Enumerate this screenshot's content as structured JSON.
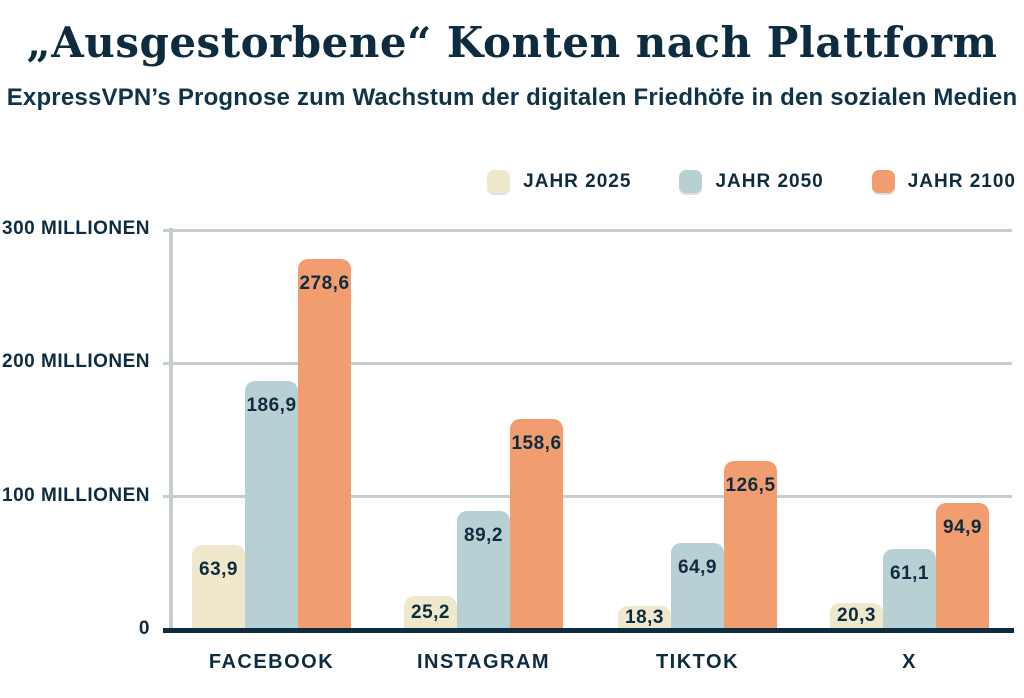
{
  "header": {
    "title": "„Ausgestorbene“ Konten nach Plattform",
    "subtitle": "ExpressVPN’s Prognose zum Wachstum der digitalen Friedhöfe in den sozialen Medien"
  },
  "colors": {
    "text_navy": "#0e2c3f",
    "grid_gray": "#c6cdd1",
    "axis_navy": "#0e2c3f",
    "series_2025": "#efe8cc",
    "series_2050": "#b7d0d3",
    "series_2100": "#f19d70",
    "background": "#ffffff"
  },
  "legend": {
    "items": [
      {
        "label": "JAHR 2025",
        "color": "#efe8cc"
      },
      {
        "label": "JAHR 2050",
        "color": "#b7d0d3"
      },
      {
        "label": "JAHR 2100",
        "color": "#f19d70"
      }
    ]
  },
  "chart_data": {
    "type": "bar",
    "title": "„Ausgestorbene“ Konten nach Plattform",
    "subtitle": "ExpressVPN’s Prognose zum Wachstum der digitalen Friedhöfe in den sozialen Medien",
    "categories": [
      "FACEBOOK",
      "INSTAGRAM",
      "TIKTOK",
      "X"
    ],
    "series": [
      {
        "name": "JAHR 2025",
        "color": "#efe8cc",
        "values": [
          63.9,
          25.2,
          18.3,
          20.3
        ],
        "labels": [
          "63,9",
          "25,2",
          "18,3",
          "20,3"
        ]
      },
      {
        "name": "JAHR 2050",
        "color": "#b7d0d3",
        "values": [
          186.9,
          89.2,
          64.9,
          61.1
        ],
        "labels": [
          "186,9",
          "89,2",
          "64,9",
          "61,1"
        ]
      },
      {
        "name": "JAHR 2100",
        "color": "#f19d70",
        "values": [
          278.6,
          158.6,
          126.5,
          94.9
        ],
        "labels": [
          "278,6",
          "158,6",
          "126,5",
          "94,9"
        ]
      }
    ],
    "y_axis": {
      "unit": "Millionen",
      "ylim": [
        0,
        300
      ],
      "ticks": [
        {
          "label": "300 MILLIONEN",
          "value": 300
        },
        {
          "label": "200 MILLIONEN",
          "value": 200
        },
        {
          "label": "100 MILLIONEN",
          "value": 100
        },
        {
          "label": "0",
          "value": 0
        }
      ]
    },
    "grid": true,
    "legend_position": "top-right",
    "value_decimal_separator": ","
  }
}
